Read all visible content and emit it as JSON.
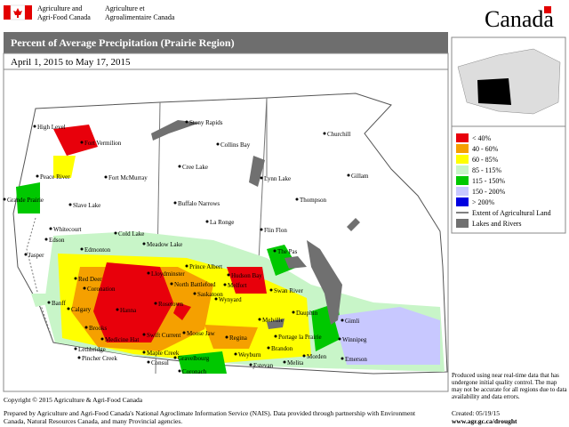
{
  "header": {
    "dept_en": [
      "Agriculture and",
      "Agri-Food Canada"
    ],
    "dept_fr": [
      "Agriculture et",
      "Agroalimentaire Canada"
    ],
    "wordmark": "Canada"
  },
  "title": "Percent of Average Precipitation (Prairie Region)",
  "subtitle": "April 1, 2015 to May 17, 2015",
  "cities": [
    "High Level",
    "Fort Vermilion",
    "Stony Rapids",
    "Churchill",
    "Collins Bay",
    "Peace River",
    "Fort McMurray",
    "Cree Lake",
    "Lynn Lake",
    "Gillam",
    "Grande Prairie",
    "Slave Lake",
    "Buffalo Narrows",
    "Thompson",
    "Whitecourt",
    "Cold Lake",
    "La Ronge",
    "Flin Flon",
    "Edson",
    "Meadow Lake",
    "The Pas",
    "Jasper",
    "Edmonton",
    "Prince Albert",
    "Red Deer",
    "Lloydminster",
    "Hudson Bay",
    "Coronation",
    "North Battleford",
    "Melfort",
    "Swan River",
    "Saskatoon",
    "Banff",
    "Calgary",
    "Hanna",
    "Rosetown",
    "Wynyard",
    "Dauphin",
    "Gimli",
    "Brooks",
    "Melville",
    "Medicine Hat",
    "Swift Current",
    "Moose Jaw",
    "Regina",
    "Portage la Prairie",
    "Winnipeg",
    "Lethbridge",
    "Pincher Creek",
    "Maple Creek",
    "Gravelbourg",
    "Weyburn",
    "Brandon",
    "Consul",
    "Morden",
    "Estevan",
    "Melita",
    "Emerson",
    "Coronach"
  ],
  "legend": [
    {
      "label": "< 40%",
      "color": "#e8000b"
    },
    {
      "label": "40 - 60%",
      "color": "#f5a000"
    },
    {
      "label": "60 - 85%",
      "color": "#ffff00"
    },
    {
      "label": "85 - 115%",
      "color": "#c8f5c8"
    },
    {
      "label": "115 - 150%",
      "color": "#00c800"
    },
    {
      "label": "150 - 200%",
      "color": "#c8c8ff"
    },
    {
      "label": "> 200%",
      "color": "#0000e0"
    },
    {
      "label": "Extent of Agricultural Land",
      "kind": "line"
    },
    {
      "label": "Lakes and Rivers",
      "kind": "swatch",
      "color": "#707070"
    }
  ],
  "note": "Produced using near real-time data that has undergone initial quality control. The map may not be accurate for all regions due to data availability and data errors.",
  "copyright": "Copyright © 2015 Agriculture & Agri-Food Canada",
  "footer": "Prepared by Agriculture and Agri-Food Canada's National Agroclimate Information Service (NAIS).  Data provided through partnership with Environment Canada, Natural Resources Canada, and many Provincial agencies.",
  "created": "Created: 05/19/15",
  "url": "www.agr.gc.ca/drought"
}
